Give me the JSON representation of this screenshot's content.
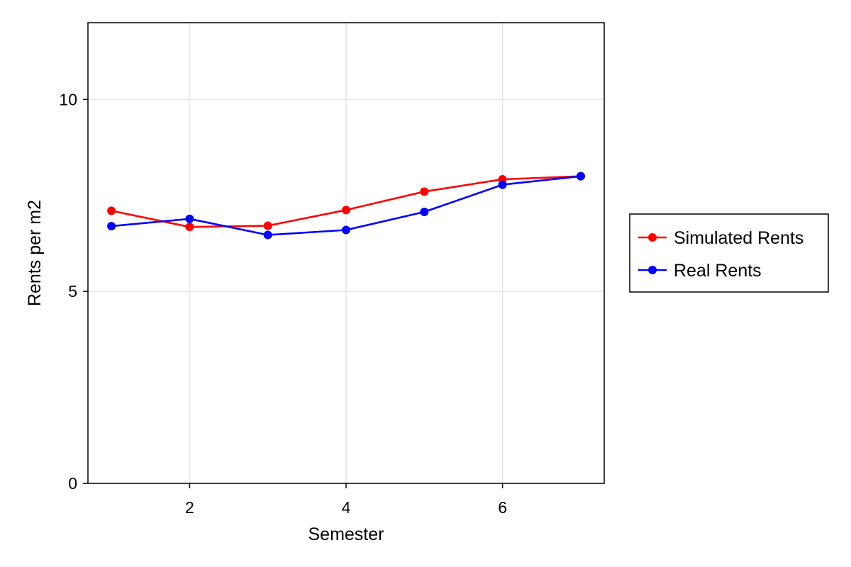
{
  "chart_data": {
    "type": "line",
    "title": "",
    "xlabel": "Semester",
    "ylabel": "Rents per m2",
    "xlim": [
      0.7,
      7.3
    ],
    "ylim": [
      0,
      12
    ],
    "x_ticks": [
      2,
      4,
      6
    ],
    "y_ticks": [
      0,
      5,
      10
    ],
    "x_tick_labels": [
      "2",
      "4",
      "6"
    ],
    "y_tick_labels": [
      "0",
      "5",
      "10"
    ],
    "grid": true,
    "legend_position": "right",
    "x": [
      1,
      2,
      3,
      4,
      5,
      6,
      7
    ],
    "series": [
      {
        "name": "Simulated Rents",
        "color": "#ff0000",
        "values": [
          7.1,
          6.68,
          6.71,
          7.12,
          7.6,
          7.92,
          8.0
        ]
      },
      {
        "name": "Real Rents",
        "color": "#0000ff",
        "values": [
          6.7,
          6.89,
          6.47,
          6.6,
          7.07,
          7.78,
          8.0
        ]
      }
    ]
  }
}
